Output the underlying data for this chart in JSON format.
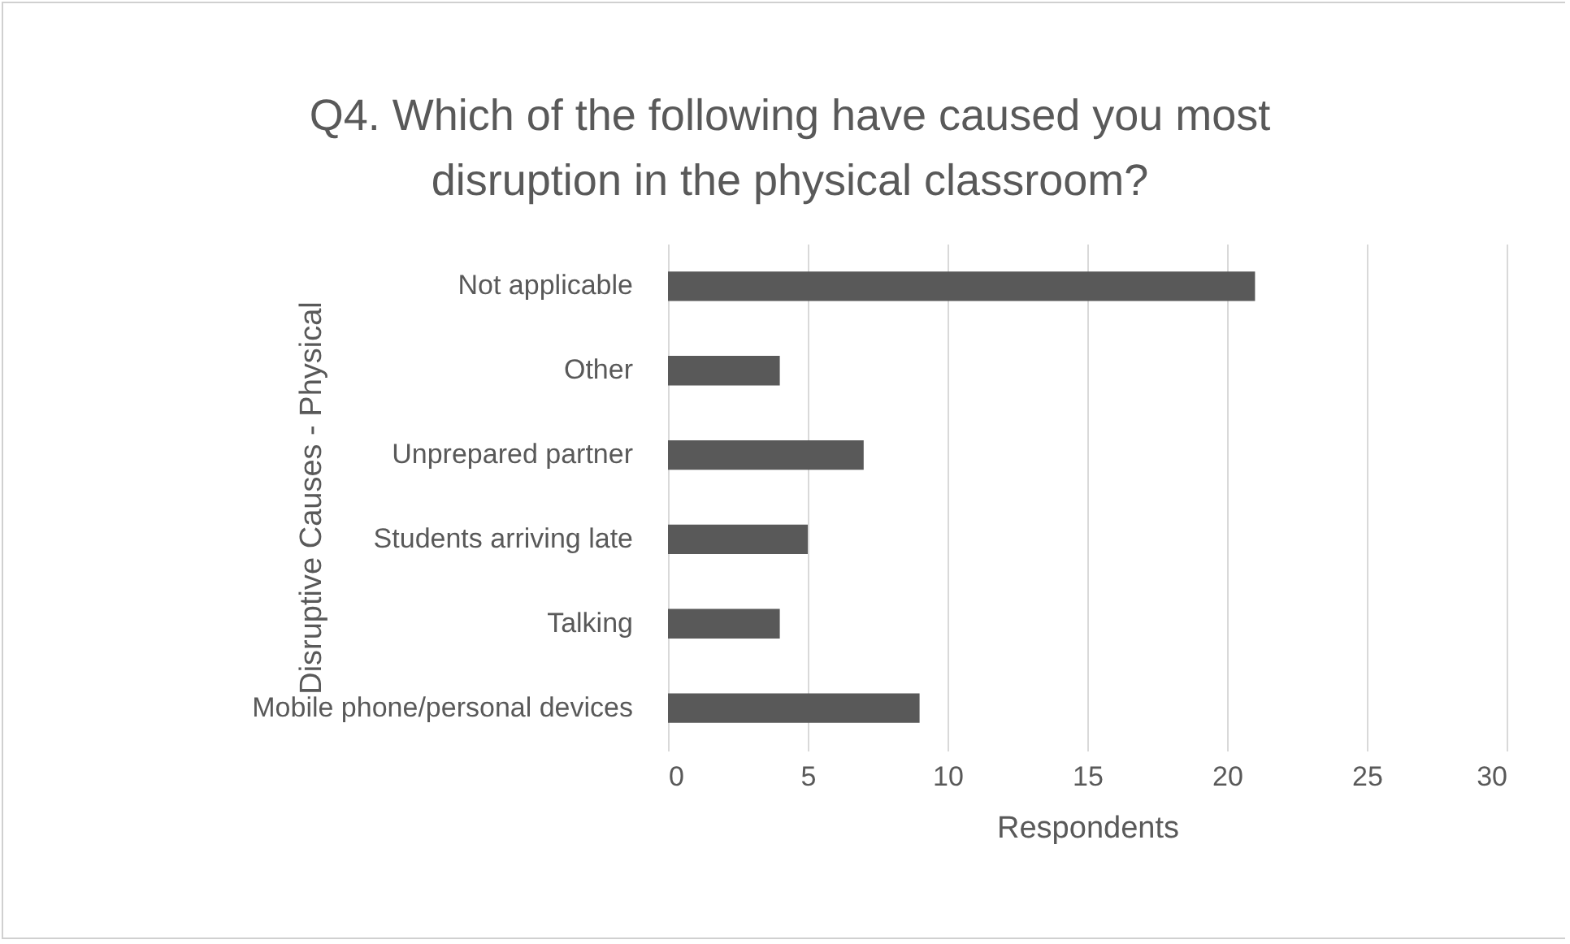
{
  "chart_data": {
    "type": "bar",
    "orientation": "horizontal",
    "title": "Q4. Which of the following have caused you most disruption in the physical classroom?",
    "xlabel": "Respondents",
    "ylabel": "Disruptive Causes - Physical",
    "categories": [
      "Not applicable",
      "Other",
      "Unprepared partner",
      "Students arriving late",
      "Talking",
      "Mobile phone/personal devices"
    ],
    "values": [
      21,
      4,
      7,
      5,
      4,
      9
    ],
    "color": "#595959",
    "xlim": [
      0,
      30
    ],
    "xticks": [
      0,
      5,
      10,
      15,
      20,
      25,
      30
    ],
    "grid": "x"
  }
}
